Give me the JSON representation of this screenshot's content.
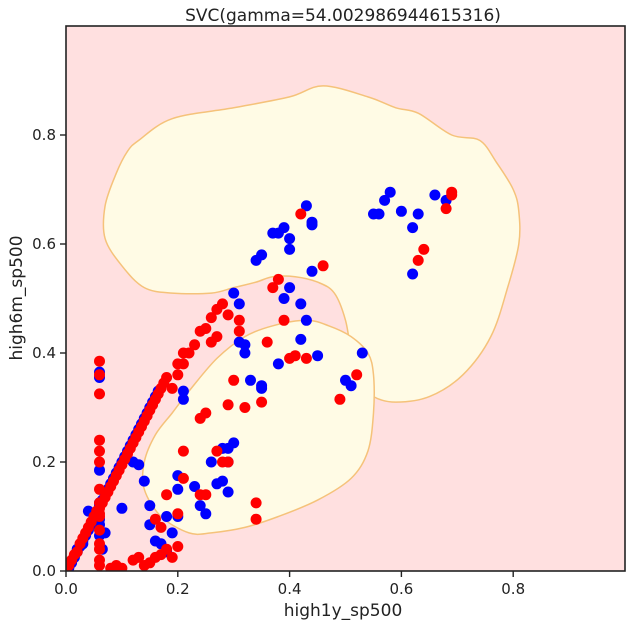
{
  "chart_data": {
    "type": "scatter",
    "title": "SVC(gamma=54.002986944615316)",
    "xlabel": "high1y_sp500",
    "ylabel": "high6m_sp500",
    "xlim": [
      0.0,
      1.0
    ],
    "ylim": [
      0.0,
      1.0
    ],
    "xticks": [
      0.0,
      0.2,
      0.4,
      0.6,
      0.8
    ],
    "yticks": [
      0.0,
      0.2,
      0.4,
      0.6,
      0.8
    ],
    "xtick_labels": [
      "0.0",
      "0.2",
      "0.4",
      "0.6",
      "0.8"
    ],
    "ytick_labels": [
      "0.0",
      "0.2",
      "0.4",
      "0.6",
      "0.8"
    ],
    "grid": false,
    "legend": "none",
    "colors": {
      "background_region": "#ffe0e0",
      "decision_region": "#fffbe5",
      "boundary": "#f5c27a",
      "class_a": "#0000ff",
      "class_b": "#ff0000"
    },
    "decision_regions": [
      {
        "label": "upper",
        "polygon": [
          [
            0.13,
            0.79
          ],
          [
            0.19,
            0.83
          ],
          [
            0.3,
            0.85
          ],
          [
            0.4,
            0.87
          ],
          [
            0.46,
            0.89
          ],
          [
            0.54,
            0.87
          ],
          [
            0.59,
            0.85
          ],
          [
            0.63,
            0.84
          ],
          [
            0.69,
            0.8
          ],
          [
            0.74,
            0.79
          ],
          [
            0.77,
            0.75
          ],
          [
            0.8,
            0.7
          ],
          [
            0.81,
            0.66
          ],
          [
            0.81,
            0.6
          ],
          [
            0.79,
            0.52
          ],
          [
            0.76,
            0.43
          ],
          [
            0.71,
            0.36
          ],
          [
            0.65,
            0.32
          ],
          [
            0.59,
            0.31
          ],
          [
            0.55,
            0.32
          ],
          [
            0.52,
            0.35
          ],
          [
            0.51,
            0.4
          ],
          [
            0.5,
            0.46
          ],
          [
            0.48,
            0.51
          ],
          [
            0.45,
            0.53
          ],
          [
            0.41,
            0.54
          ],
          [
            0.37,
            0.54
          ],
          [
            0.34,
            0.53
          ],
          [
            0.3,
            0.52
          ],
          [
            0.26,
            0.51
          ],
          [
            0.19,
            0.51
          ],
          [
            0.14,
            0.52
          ],
          [
            0.1,
            0.56
          ],
          [
            0.07,
            0.61
          ],
          [
            0.07,
            0.67
          ],
          [
            0.09,
            0.73
          ],
          [
            0.11,
            0.77
          ]
        ]
      },
      {
        "label": "lower",
        "polygon": [
          [
            0.22,
            0.33
          ],
          [
            0.27,
            0.39
          ],
          [
            0.32,
            0.43
          ],
          [
            0.37,
            0.45
          ],
          [
            0.43,
            0.46
          ],
          [
            0.47,
            0.45
          ],
          [
            0.51,
            0.43
          ],
          [
            0.54,
            0.4
          ],
          [
            0.55,
            0.36
          ],
          [
            0.55,
            0.29
          ],
          [
            0.54,
            0.22
          ],
          [
            0.51,
            0.17
          ],
          [
            0.45,
            0.13
          ],
          [
            0.38,
            0.1
          ],
          [
            0.32,
            0.08
          ],
          [
            0.26,
            0.07
          ],
          [
            0.22,
            0.07
          ],
          [
            0.17,
            0.1
          ],
          [
            0.14,
            0.15
          ],
          [
            0.14,
            0.2
          ],
          [
            0.16,
            0.25
          ],
          [
            0.19,
            0.29
          ]
        ]
      }
    ],
    "series": [
      {
        "color": "#0000ff",
        "points": [
          [
            0.005,
            0.005
          ],
          [
            0.01,
            0.015
          ],
          [
            0.015,
            0.025
          ],
          [
            0.02,
            0.035
          ],
          [
            0.025,
            0.045
          ],
          [
            0.03,
            0.055
          ],
          [
            0.035,
            0.065
          ],
          [
            0.04,
            0.075
          ],
          [
            0.045,
            0.085
          ],
          [
            0.05,
            0.095
          ],
          [
            0.055,
            0.105
          ],
          [
            0.06,
            0.12
          ],
          [
            0.065,
            0.13
          ],
          [
            0.07,
            0.14
          ],
          [
            0.075,
            0.15
          ],
          [
            0.08,
            0.16
          ],
          [
            0.085,
            0.17
          ],
          [
            0.09,
            0.18
          ],
          [
            0.095,
            0.19
          ],
          [
            0.1,
            0.2
          ],
          [
            0.105,
            0.21
          ],
          [
            0.11,
            0.22
          ],
          [
            0.115,
            0.23
          ],
          [
            0.12,
            0.24
          ],
          [
            0.125,
            0.25
          ],
          [
            0.13,
            0.26
          ],
          [
            0.135,
            0.27
          ],
          [
            0.14,
            0.28
          ],
          [
            0.145,
            0.29
          ],
          [
            0.15,
            0.3
          ],
          [
            0.155,
            0.31
          ],
          [
            0.16,
            0.32
          ],
          [
            0.165,
            0.33
          ],
          [
            0.06,
            0.365
          ],
          [
            0.06,
            0.355
          ],
          [
            0.06,
            0.185
          ],
          [
            0.06,
            0.125
          ],
          [
            0.06,
            0.095
          ],
          [
            0.06,
            0.085
          ],
          [
            0.06,
            0.065
          ],
          [
            0.07,
            0.07
          ],
          [
            0.065,
            0.04
          ],
          [
            0.03,
            0.05
          ],
          [
            0.02,
            0.04
          ],
          [
            0.04,
            0.11
          ],
          [
            0.1,
            0.115
          ],
          [
            0.12,
            0.2
          ],
          [
            0.13,
            0.195
          ],
          [
            0.14,
            0.165
          ],
          [
            0.15,
            0.12
          ],
          [
            0.15,
            0.085
          ],
          [
            0.16,
            0.055
          ],
          [
            0.17,
            0.05
          ],
          [
            0.18,
            0.035
          ],
          [
            0.18,
            0.1
          ],
          [
            0.19,
            0.07
          ],
          [
            0.2,
            0.1
          ],
          [
            0.2,
            0.175
          ],
          [
            0.2,
            0.15
          ],
          [
            0.21,
            0.33
          ],
          [
            0.21,
            0.315
          ],
          [
            0.23,
            0.155
          ],
          [
            0.24,
            0.12
          ],
          [
            0.25,
            0.105
          ],
          [
            0.26,
            0.2
          ],
          [
            0.27,
            0.16
          ],
          [
            0.28,
            0.165
          ],
          [
            0.29,
            0.2
          ],
          [
            0.29,
            0.145
          ],
          [
            0.3,
            0.235
          ],
          [
            0.3,
            0.51
          ],
          [
            0.31,
            0.49
          ],
          [
            0.31,
            0.42
          ],
          [
            0.32,
            0.415
          ],
          [
            0.32,
            0.4
          ],
          [
            0.33,
            0.35
          ],
          [
            0.34,
            0.57
          ],
          [
            0.35,
            0.58
          ],
          [
            0.35,
            0.335
          ],
          [
            0.35,
            0.34
          ],
          [
            0.37,
            0.62
          ],
          [
            0.38,
            0.38
          ],
          [
            0.38,
            0.62
          ],
          [
            0.39,
            0.63
          ],
          [
            0.4,
            0.61
          ],
          [
            0.4,
            0.59
          ],
          [
            0.39,
            0.5
          ],
          [
            0.4,
            0.52
          ],
          [
            0.42,
            0.425
          ],
          [
            0.43,
            0.67
          ],
          [
            0.44,
            0.64
          ],
          [
            0.44,
            0.635
          ],
          [
            0.45,
            0.395
          ],
          [
            0.44,
            0.55
          ],
          [
            0.42,
            0.49
          ],
          [
            0.43,
            0.46
          ],
          [
            0.53,
            0.4
          ],
          [
            0.5,
            0.35
          ],
          [
            0.51,
            0.34
          ],
          [
            0.55,
            0.655
          ],
          [
            0.56,
            0.655
          ],
          [
            0.57,
            0.68
          ],
          [
            0.58,
            0.695
          ],
          [
            0.6,
            0.66
          ],
          [
            0.62,
            0.63
          ],
          [
            0.62,
            0.545
          ],
          [
            0.63,
            0.655
          ],
          [
            0.66,
            0.69
          ],
          [
            0.68,
            0.68
          ],
          [
            0.29,
            0.225
          ],
          [
            0.28,
            0.225
          ]
        ]
      },
      {
        "color": "#ff0000",
        "points": [
          [
            0.005,
            0.01
          ],
          [
            0.01,
            0.02
          ],
          [
            0.015,
            0.03
          ],
          [
            0.02,
            0.035
          ],
          [
            0.025,
            0.05
          ],
          [
            0.03,
            0.06
          ],
          [
            0.035,
            0.07
          ],
          [
            0.04,
            0.08
          ],
          [
            0.045,
            0.09
          ],
          [
            0.05,
            0.1
          ],
          [
            0.055,
            0.11
          ],
          [
            0.06,
            0.115
          ],
          [
            0.065,
            0.125
          ],
          [
            0.07,
            0.135
          ],
          [
            0.075,
            0.145
          ],
          [
            0.08,
            0.155
          ],
          [
            0.085,
            0.165
          ],
          [
            0.09,
            0.175
          ],
          [
            0.095,
            0.185
          ],
          [
            0.1,
            0.195
          ],
          [
            0.105,
            0.205
          ],
          [
            0.11,
            0.215
          ],
          [
            0.115,
            0.225
          ],
          [
            0.12,
            0.235
          ],
          [
            0.125,
            0.245
          ],
          [
            0.13,
            0.255
          ],
          [
            0.135,
            0.265
          ],
          [
            0.14,
            0.275
          ],
          [
            0.145,
            0.285
          ],
          [
            0.15,
            0.295
          ],
          [
            0.155,
            0.305
          ],
          [
            0.16,
            0.315
          ],
          [
            0.165,
            0.325
          ],
          [
            0.17,
            0.335
          ],
          [
            0.175,
            0.345
          ],
          [
            0.18,
            0.355
          ],
          [
            0.06,
            0.385
          ],
          [
            0.06,
            0.36
          ],
          [
            0.06,
            0.325
          ],
          [
            0.06,
            0.24
          ],
          [
            0.06,
            0.22
          ],
          [
            0.06,
            0.2
          ],
          [
            0.06,
            0.15
          ],
          [
            0.06,
            0.125
          ],
          [
            0.06,
            0.105
          ],
          [
            0.06,
            0.1
          ],
          [
            0.06,
            0.075
          ],
          [
            0.06,
            0.05
          ],
          [
            0.06,
            0.04
          ],
          [
            0.06,
            0.02
          ],
          [
            0.06,
            0.01
          ],
          [
            0.08,
            0.005
          ],
          [
            0.09,
            0.01
          ],
          [
            0.1,
            0.005
          ],
          [
            0.12,
            0.02
          ],
          [
            0.13,
            0.025
          ],
          [
            0.14,
            0.01
          ],
          [
            0.15,
            0.015
          ],
          [
            0.16,
            0.025
          ],
          [
            0.17,
            0.03
          ],
          [
            0.18,
            0.04
          ],
          [
            0.19,
            0.025
          ],
          [
            0.2,
            0.045
          ],
          [
            0.19,
            0.335
          ],
          [
            0.2,
            0.36
          ],
          [
            0.2,
            0.38
          ],
          [
            0.21,
            0.22
          ],
          [
            0.21,
            0.38
          ],
          [
            0.21,
            0.4
          ],
          [
            0.22,
            0.4
          ],
          [
            0.23,
            0.415
          ],
          [
            0.24,
            0.44
          ],
          [
            0.24,
            0.28
          ],
          [
            0.25,
            0.29
          ],
          [
            0.25,
            0.445
          ],
          [
            0.26,
            0.42
          ],
          [
            0.26,
            0.465
          ],
          [
            0.27,
            0.48
          ],
          [
            0.27,
            0.43
          ],
          [
            0.28,
            0.49
          ],
          [
            0.29,
            0.47
          ],
          [
            0.29,
            0.305
          ],
          [
            0.3,
            0.35
          ],
          [
            0.31,
            0.46
          ],
          [
            0.31,
            0.44
          ],
          [
            0.32,
            0.3
          ],
          [
            0.34,
            0.125
          ],
          [
            0.34,
            0.095
          ],
          [
            0.35,
            0.31
          ],
          [
            0.36,
            0.42
          ],
          [
            0.37,
            0.52
          ],
          [
            0.38,
            0.535
          ],
          [
            0.39,
            0.46
          ],
          [
            0.4,
            0.39
          ],
          [
            0.41,
            0.395
          ],
          [
            0.42,
            0.655
          ],
          [
            0.43,
            0.39
          ],
          [
            0.46,
            0.56
          ],
          [
            0.49,
            0.315
          ],
          [
            0.52,
            0.36
          ],
          [
            0.63,
            0.57
          ],
          [
            0.64,
            0.59
          ],
          [
            0.68,
            0.665
          ],
          [
            0.69,
            0.69
          ],
          [
            0.69,
            0.695
          ],
          [
            0.18,
            0.14
          ],
          [
            0.2,
            0.105
          ],
          [
            0.21,
            0.17
          ],
          [
            0.24,
            0.14
          ],
          [
            0.25,
            0.14
          ],
          [
            0.27,
            0.22
          ],
          [
            0.28,
            0.2
          ],
          [
            0.29,
            0.2
          ],
          [
            0.16,
            0.095
          ],
          [
            0.17,
            0.08
          ]
        ]
      }
    ]
  }
}
